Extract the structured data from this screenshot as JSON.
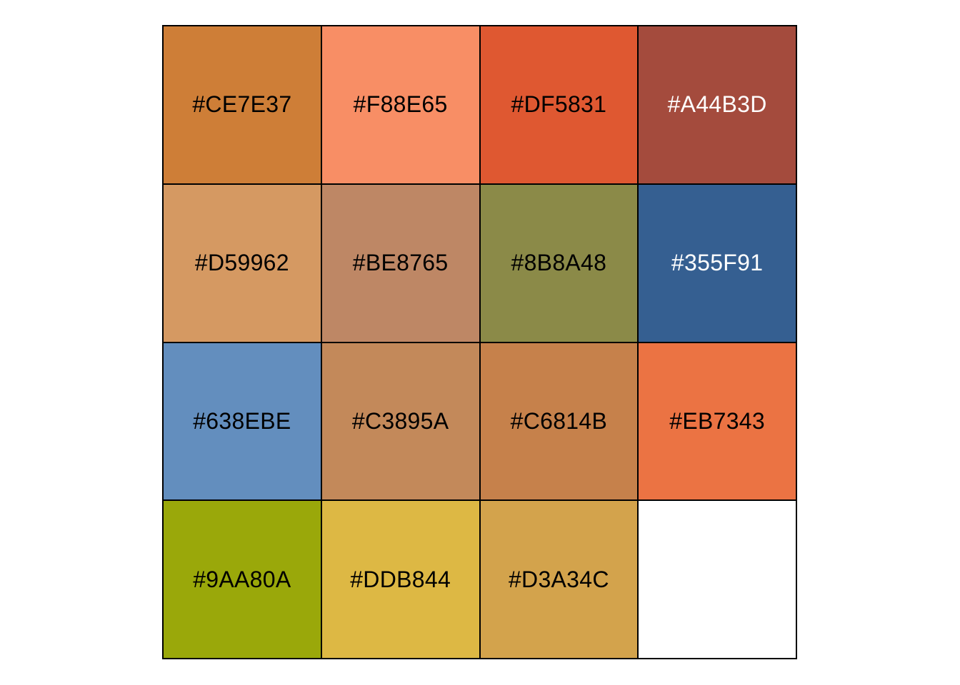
{
  "palette": {
    "swatches": [
      {
        "hex": "#CE7E37",
        "label": "#CE7E37",
        "text_color": "#000000"
      },
      {
        "hex": "#F88E65",
        "label": "#F88E65",
        "text_color": "#000000"
      },
      {
        "hex": "#DF5831",
        "label": "#DF5831",
        "text_color": "#000000"
      },
      {
        "hex": "#A44B3D",
        "label": "#A44B3D",
        "text_color": "#FFFFFF"
      },
      {
        "hex": "#D59962",
        "label": "#D59962",
        "text_color": "#000000"
      },
      {
        "hex": "#BE8765",
        "label": "#BE8765",
        "text_color": "#000000"
      },
      {
        "hex": "#8B8A48",
        "label": "#8B8A48",
        "text_color": "#000000"
      },
      {
        "hex": "#355F91",
        "label": "#355F91",
        "text_color": "#FFFFFF"
      },
      {
        "hex": "#638EBE",
        "label": "#638EBE",
        "text_color": "#000000"
      },
      {
        "hex": "#C3895A",
        "label": "#C3895A",
        "text_color": "#000000"
      },
      {
        "hex": "#C6814B",
        "label": "#C6814B",
        "text_color": "#000000"
      },
      {
        "hex": "#EB7343",
        "label": "#EB7343",
        "text_color": "#000000"
      },
      {
        "hex": "#9AA80A",
        "label": "#9AA80A",
        "text_color": "#000000"
      },
      {
        "hex": "#DDB844",
        "label": "#DDB844",
        "text_color": "#000000"
      },
      {
        "hex": "#D3A34C",
        "label": "#D3A34C",
        "text_color": "#000000"
      }
    ]
  }
}
